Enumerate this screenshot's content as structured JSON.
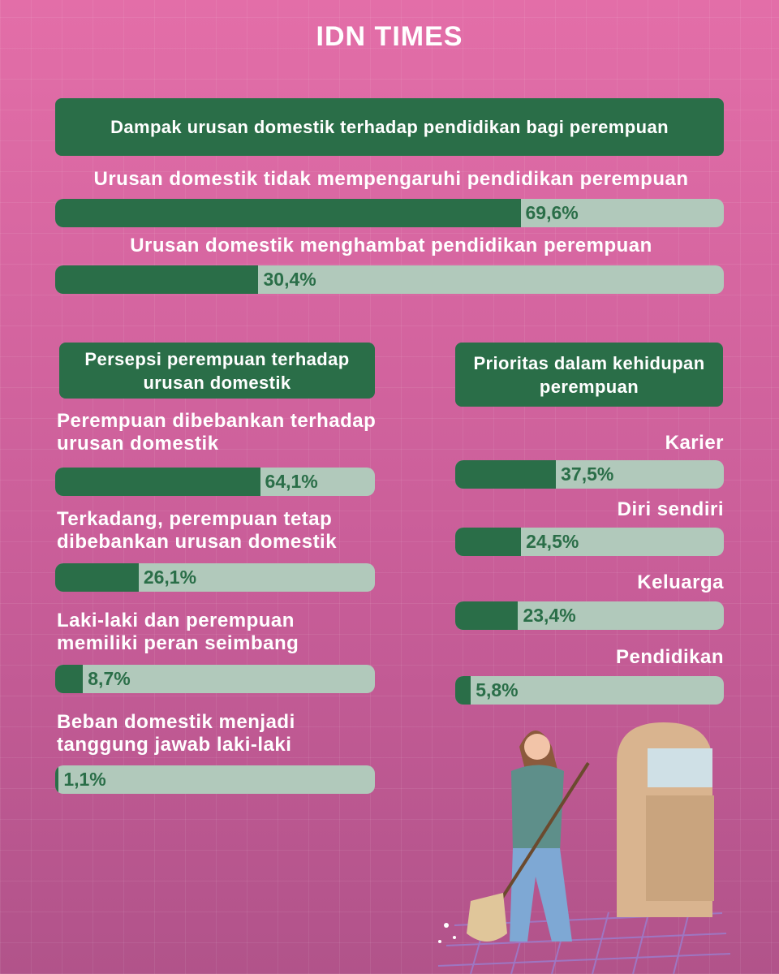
{
  "brand": "IDN TIMES",
  "chart_data": [
    {
      "type": "bar",
      "title": "Dampak urusan domestik terhadap pendidikan bagi perempuan",
      "categories": [
        "Urusan domestik tidak mempengaruhi pendidikan perempuan",
        "Urusan domestik menghambat pendidikan perempuan"
      ],
      "values": [
        69.6,
        30.4
      ],
      "value_labels": [
        "69,6%",
        "30,4%"
      ],
      "xlim": [
        0,
        100
      ],
      "color": "#2a6e48",
      "track_color": "#b1c9bb"
    },
    {
      "type": "bar",
      "title": "Persepsi perempuan terhadap urusan domestik",
      "categories": [
        "Perempuan dibebankan terhadap urusan domestik",
        "Terkadang, perempuan tetap dibebankan urusan domestik",
        "Laki-laki dan perempuan memiliki peran seimbang",
        "Beban domestik menjadi tanggung jawab laki-laki"
      ],
      "values": [
        64.1,
        26.1,
        8.7,
        1.1
      ],
      "value_labels": [
        "64,1%",
        "26,1%",
        "8,7%",
        "1,1%"
      ],
      "xlim": [
        0,
        100
      ],
      "color": "#2a6e48",
      "track_color": "#b1c9bb"
    },
    {
      "type": "bar",
      "title": "Prioritas dalam kehidupan perempuan",
      "categories": [
        "Karier",
        "Diri sendiri",
        "Keluarga",
        "Pendidikan"
      ],
      "values": [
        37.5,
        24.5,
        23.4,
        5.8
      ],
      "value_labels": [
        "37,5%",
        "24,5%",
        "23,4%",
        "5,8%"
      ],
      "xlim": [
        0,
        100
      ],
      "color": "#2a6e48",
      "track_color": "#b1c9bb"
    }
  ]
}
